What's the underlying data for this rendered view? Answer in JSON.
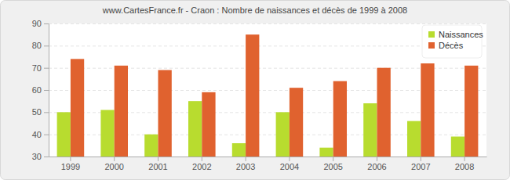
{
  "chart_data": {
    "type": "bar",
    "title": "www.CartesFrance.fr - Craon : Nombre de naissances et décès de 1999 à 2008",
    "categories": [
      "1999",
      "2000",
      "2001",
      "2002",
      "2003",
      "2004",
      "2005",
      "2006",
      "2007",
      "2008"
    ],
    "series": [
      {
        "name": "Naissances",
        "color": "#b8dc2f",
        "values": [
          50,
          51,
          40,
          55,
          36,
          50,
          34,
          54,
          46,
          39
        ]
      },
      {
        "name": "Décès",
        "color": "#e0622f",
        "values": [
          74,
          71,
          69,
          59,
          85,
          61,
          64,
          70,
          72,
          71
        ]
      }
    ],
    "ylim": [
      30,
      90
    ],
    "yticks": [
      30,
      40,
      50,
      60,
      70,
      80,
      90
    ],
    "grid": true,
    "legend": "top-right"
  }
}
